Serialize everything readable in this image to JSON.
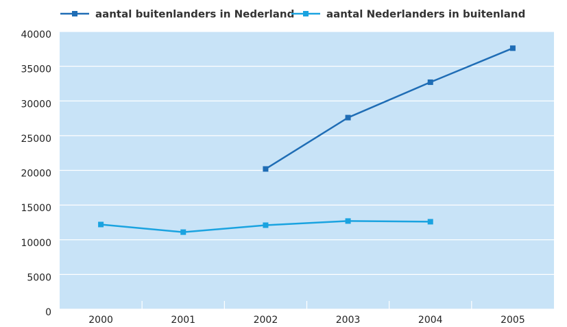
{
  "chart_data": {
    "type": "line",
    "categories": [
      "2000",
      "2001",
      "2002",
      "2003",
      "2004",
      "2005"
    ],
    "series": [
      {
        "name": "aantal buitenlanders in Nederland",
        "color": "#1f6db5",
        "values": [
          null,
          null,
          20200,
          27600,
          32700,
          37600
        ]
      },
      {
        "name": "aantal Nederlanders in buitenland",
        "color": "#1aa3e0",
        "values": [
          12200,
          11100,
          12100,
          12700,
          12600,
          null
        ]
      }
    ],
    "ylim": [
      0,
      40000
    ],
    "yticks": [
      0,
      5000,
      10000,
      15000,
      20000,
      25000,
      30000,
      35000,
      40000
    ],
    "grid": true,
    "background": "#c8e3f7",
    "legend": "top"
  }
}
